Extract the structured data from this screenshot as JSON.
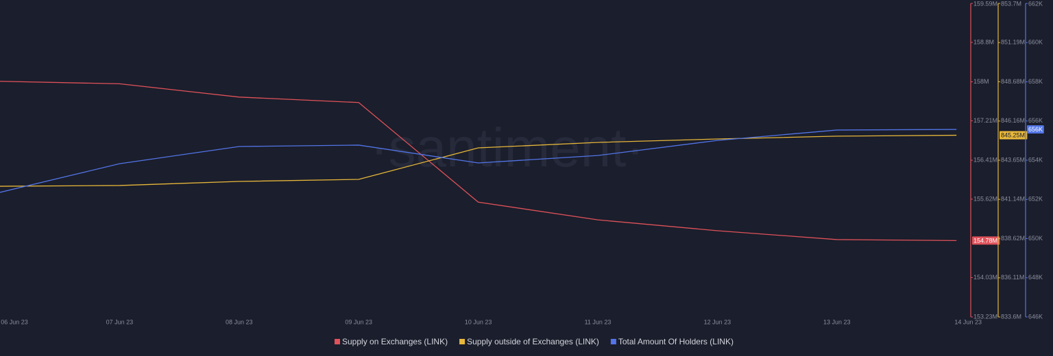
{
  "chart_data": {
    "type": "line",
    "watermark": "·santiment·",
    "categories": [
      "06 Jun 23",
      "07 Jun 23",
      "08 Jun 23",
      "09 Jun 23",
      "10 Jun 23",
      "11 Jun 23",
      "12 Jun 23",
      "13 Jun 23",
      "14 Jun 23"
    ],
    "series": [
      {
        "name": "Supply on Exchanges (LINK)",
        "color": "#e0525a",
        "values": [
          158010000,
          157960000,
          157690000,
          157580000,
          155560000,
          155200000,
          154980000,
          154800000,
          154780000
        ],
        "value_labels": [
          null,
          null,
          null,
          null,
          null,
          null,
          null,
          null,
          "154.78M"
        ],
        "ylim": [
          153230000,
          159590000
        ],
        "yticks": [
          {
            "value": 153230000,
            "label": "153.23M"
          },
          {
            "value": 154030000,
            "label": "154.03M"
          },
          {
            "value": 155620000,
            "label": "155.62M"
          },
          {
            "value": 156410000,
            "label": "156.41M"
          },
          {
            "value": 157210000,
            "label": "157.21M"
          },
          {
            "value": 158000000,
            "label": "158M"
          },
          {
            "value": 158800000,
            "label": "158.8M"
          },
          {
            "value": 159590000,
            "label": "159.59M"
          }
        ]
      },
      {
        "name": "Supply outside of Exchanges (LINK)",
        "color": "#e8b83a",
        "values": [
          841980000,
          842030000,
          842290000,
          842420000,
          844440000,
          844790000,
          845010000,
          845190000,
          845250000
        ],
        "value_labels": [
          null,
          null,
          null,
          null,
          null,
          null,
          null,
          null,
          "845.25M"
        ],
        "ylim": [
          833600000,
          853700000
        ],
        "yticks": [
          {
            "value": 833600000,
            "label": "833.6M"
          },
          {
            "value": 836110000,
            "label": "836.11M"
          },
          {
            "value": 838620000,
            "label": "838.62M"
          },
          {
            "value": 841140000,
            "label": "841.14M"
          },
          {
            "value": 843650000,
            "label": "843.65M"
          },
          {
            "value": 846160000,
            "label": "846.16M"
          },
          {
            "value": 848680000,
            "label": "848.68M"
          },
          {
            "value": 851190000,
            "label": "851.19M"
          },
          {
            "value": 853700000,
            "label": "853.7M"
          }
        ]
      },
      {
        "name": "Total Amount Of Holders (LINK)",
        "color": "#5275e8",
        "values": [
          652360,
          653820,
          654700,
          654770,
          653860,
          654240,
          655010,
          655540,
          655570
        ],
        "value_labels": [
          null,
          null,
          null,
          null,
          null,
          null,
          null,
          null,
          "656K"
        ],
        "ylim": [
          646000,
          662000
        ],
        "yticks": [
          {
            "value": 646000,
            "label": "646K"
          },
          {
            "value": 648000,
            "label": "648K"
          },
          {
            "value": 650000,
            "label": "650K"
          },
          {
            "value": 652000,
            "label": "652K"
          },
          {
            "value": 654000,
            "label": "654K"
          },
          {
            "value": 656000,
            "label": "656K"
          },
          {
            "value": 658000,
            "label": "658K"
          },
          {
            "value": 660000,
            "label": "660K"
          },
          {
            "value": 662000,
            "label": "662K"
          }
        ]
      }
    ]
  }
}
